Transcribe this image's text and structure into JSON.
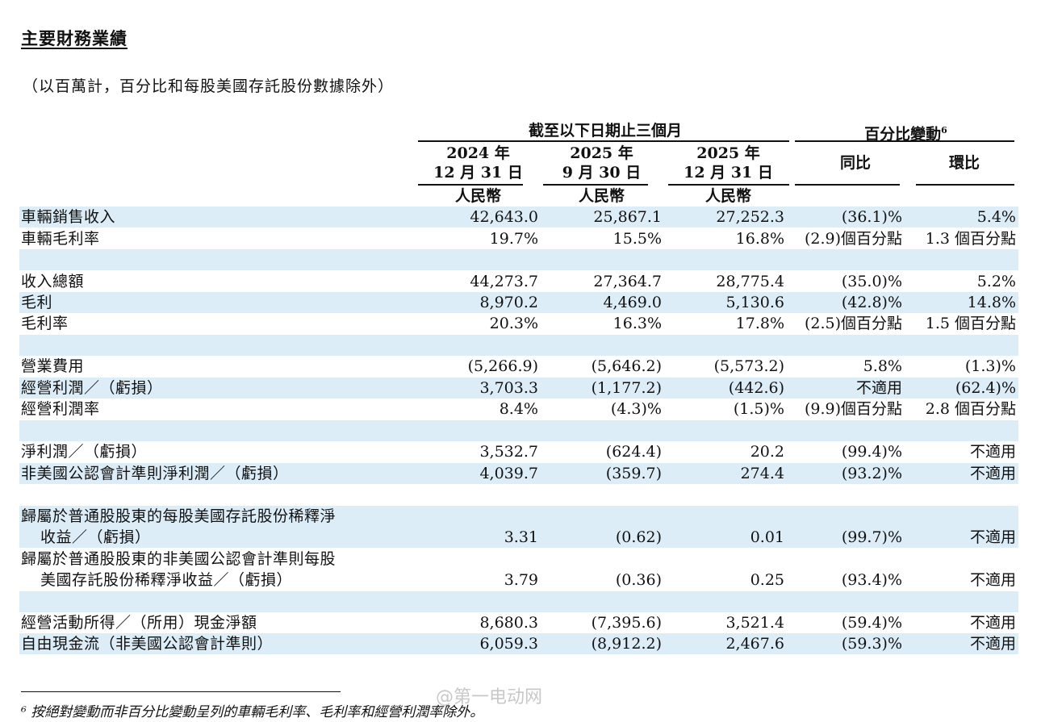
{
  "title": "主要財務業績",
  "subtitle": "（以百萬計，百分比和每股美國存託股份數據除外）",
  "header": {
    "group1": "截至以下日期止三個月",
    "group2": "百分比變動",
    "group2_sup": "6",
    "col1_year": "2024 年",
    "col1_date": "12 月 31 日",
    "col2_year": "2025 年",
    "col2_date": "9 月 30 日",
    "col3_year": "2025 年",
    "col3_date": "12 月 31 日",
    "currency": "人民幣",
    "col4": "同比",
    "col5": "環比"
  },
  "rows": [
    {
      "label": "車輛銷售收入",
      "v1": "42,643.0",
      "v2": "25,867.1",
      "v3": "27,252.3",
      "yoy": "(36.1)%",
      "qoq": "5.4%"
    },
    {
      "label": "車輛毛利率",
      "v1": "19.7%",
      "v2": "15.5%",
      "v3": "16.8%",
      "yoy": "(2.9)個百分點",
      "qoq": "1.3 個百分點"
    },
    {
      "label": "收入總額",
      "v1": "44,273.7",
      "v2": "27,364.7",
      "v3": "28,775.4",
      "yoy": "(35.0)%",
      "qoq": "5.2%"
    },
    {
      "label": "毛利",
      "v1": "8,970.2",
      "v2": "4,469.0",
      "v3": "5,130.6",
      "yoy": "(42.8)%",
      "qoq": "14.8%"
    },
    {
      "label": "毛利率",
      "v1": "20.3%",
      "v2": "16.3%",
      "v3": "17.8%",
      "yoy": "(2.5)個百分點",
      "qoq": "1.5 個百分點"
    },
    {
      "label": "營業費用",
      "v1": "(5,266.9)",
      "v2": "(5,646.2)",
      "v3": "(5,573.2)",
      "yoy": "5.8%",
      "qoq": "(1.3)%"
    },
    {
      "label": "經營利潤／（虧損）",
      "v1": "3,703.3",
      "v2": "(1,177.2)",
      "v3": "(442.6)",
      "yoy": "不適用",
      "qoq": "(62.4)%"
    },
    {
      "label": "經營利潤率",
      "v1": "8.4%",
      "v2": "(4.3)%",
      "v3": "(1.5)%",
      "yoy": "(9.9)個百分點",
      "qoq": "2.8 個百分點"
    },
    {
      "label": "淨利潤／（虧損）",
      "v1": "3,532.7",
      "v2": "(624.4)",
      "v3": "20.2",
      "yoy": "(99.4)%",
      "qoq": "不適用"
    },
    {
      "label": "非美國公認會計準則淨利潤／（虧損）",
      "v1": "4,039.7",
      "v2": "(359.7)",
      "v3": "274.4",
      "yoy": "(93.2)%",
      "qoq": "不適用"
    },
    {
      "label": "歸屬於普通股股東的每股美國存託股份稀釋淨",
      "label2": "收益／（虧損）",
      "v1": "3.31",
      "v2": "(0.62)",
      "v3": "0.01",
      "yoy": "(99.7)%",
      "qoq": "不適用"
    },
    {
      "label": "歸屬於普通股股東的非美國公認會計準則每股",
      "label2": "美國存託股份稀釋淨收益／（虧損）",
      "v1": "3.79",
      "v2": "(0.36)",
      "v3": "0.25",
      "yoy": "(93.4)%",
      "qoq": "不適用"
    },
    {
      "label": "經營活動所得／（所用）現金淨額",
      "v1": "8,680.3",
      "v2": "(7,395.6)",
      "v3": "3,521.4",
      "yoy": "(59.4)%",
      "qoq": "不適用"
    },
    {
      "label": "自由現金流（非美國公認會計準則）",
      "v1": "6,059.3",
      "v2": "(8,912.2)",
      "v3": "2,467.6",
      "yoy": "(59.3)%",
      "qoq": "不適用"
    }
  ],
  "footnote": "⁶ 按絕對變動而非百分比變動呈列的車輛毛利率、毛利率和經營利潤率除外。",
  "watermark": "@第一电动网",
  "colors": {
    "band": "#dcedf8"
  }
}
